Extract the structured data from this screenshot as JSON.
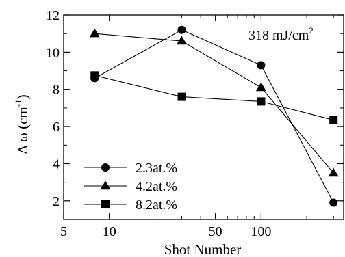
{
  "chart_data": {
    "type": "line",
    "annotation": "318 mJ/cm",
    "annotation_sup": "2",
    "xlabel": "Shot Number",
    "ylabel_main": "Δ ω (cm",
    "ylabel_sup": "-1",
    "ylabel_end": ")",
    "x_scale": "log",
    "xlim": [
      5,
      350
    ],
    "ylim": [
      1,
      12
    ],
    "x_ticks": [
      {
        "value": 5,
        "label": "5"
      },
      {
        "value": 10,
        "label": "10"
      },
      {
        "value": 50,
        "label": "50"
      },
      {
        "value": 100,
        "label": "100"
      }
    ],
    "x_minor_ticks": [
      20,
      30,
      40,
      60,
      70,
      80,
      90,
      200,
      300
    ],
    "y_ticks": [
      {
        "value": 2,
        "label": "2"
      },
      {
        "value": 4,
        "label": "4"
      },
      {
        "value": 6,
        "label": "6"
      },
      {
        "value": 8,
        "label": "8"
      },
      {
        "value": 10,
        "label": "10"
      },
      {
        "value": 12,
        "label": "12"
      }
    ],
    "y_minor_ticks": [
      3,
      5,
      7,
      9,
      11
    ],
    "legend_position": "bottom-left",
    "series": [
      {
        "name": "2.3at.%",
        "marker": "circle",
        "x": [
          8,
          30,
          100,
          300
        ],
        "y": [
          8.6,
          11.2,
          9.3,
          1.9
        ]
      },
      {
        "name": "4.2at.%",
        "marker": "triangle",
        "x": [
          8,
          30,
          100,
          300
        ],
        "y": [
          11.0,
          10.6,
          8.1,
          3.5
        ]
      },
      {
        "name": "8.2at.%",
        "marker": "square",
        "x": [
          8,
          30,
          100,
          300
        ],
        "y": [
          8.75,
          7.6,
          7.35,
          6.35
        ]
      }
    ]
  }
}
